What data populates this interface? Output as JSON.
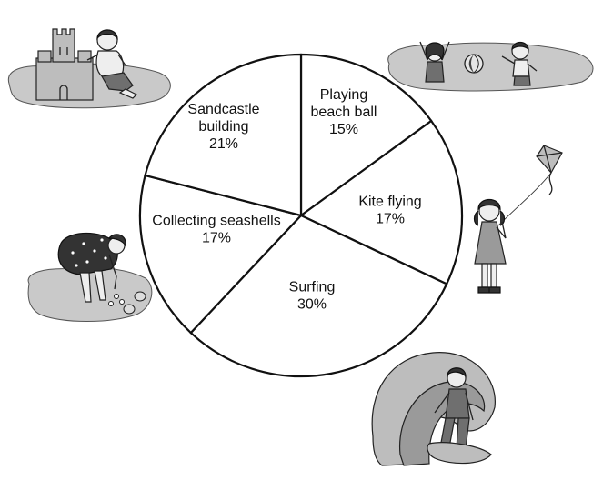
{
  "chart_data": {
    "type": "pie",
    "title": "",
    "slices": [
      {
        "label_lines": [
          "Playing",
          "beach ball"
        ],
        "percent_label": "15%",
        "value": 15
      },
      {
        "label_lines": [
          "Kite flying"
        ],
        "percent_label": "17%",
        "value": 17
      },
      {
        "label_lines": [
          "Surfing"
        ],
        "percent_label": "30%",
        "value": 30
      },
      {
        "label_lines": [
          "Collecting seashells"
        ],
        "percent_label": "17%",
        "value": 17
      },
      {
        "label_lines": [
          "Sandcastle",
          "building"
        ],
        "percent_label": "21%",
        "value": 21
      }
    ],
    "start_angle_deg": 0,
    "direction": "clockwise",
    "colors": {
      "fill": "#ffffff",
      "stroke": "#111111"
    }
  },
  "illustrations": [
    {
      "name": "sandcastle-boy-illustration",
      "icon": "sandcastle-icon"
    },
    {
      "name": "beach-ball-kids-illustration",
      "icon": "beach-ball-icon"
    },
    {
      "name": "kite-girl-illustration",
      "icon": "kite-icon"
    },
    {
      "name": "shell-collector-illustration",
      "icon": "seashell-icon"
    },
    {
      "name": "surfer-illustration",
      "icon": "surfboard-icon"
    }
  ]
}
